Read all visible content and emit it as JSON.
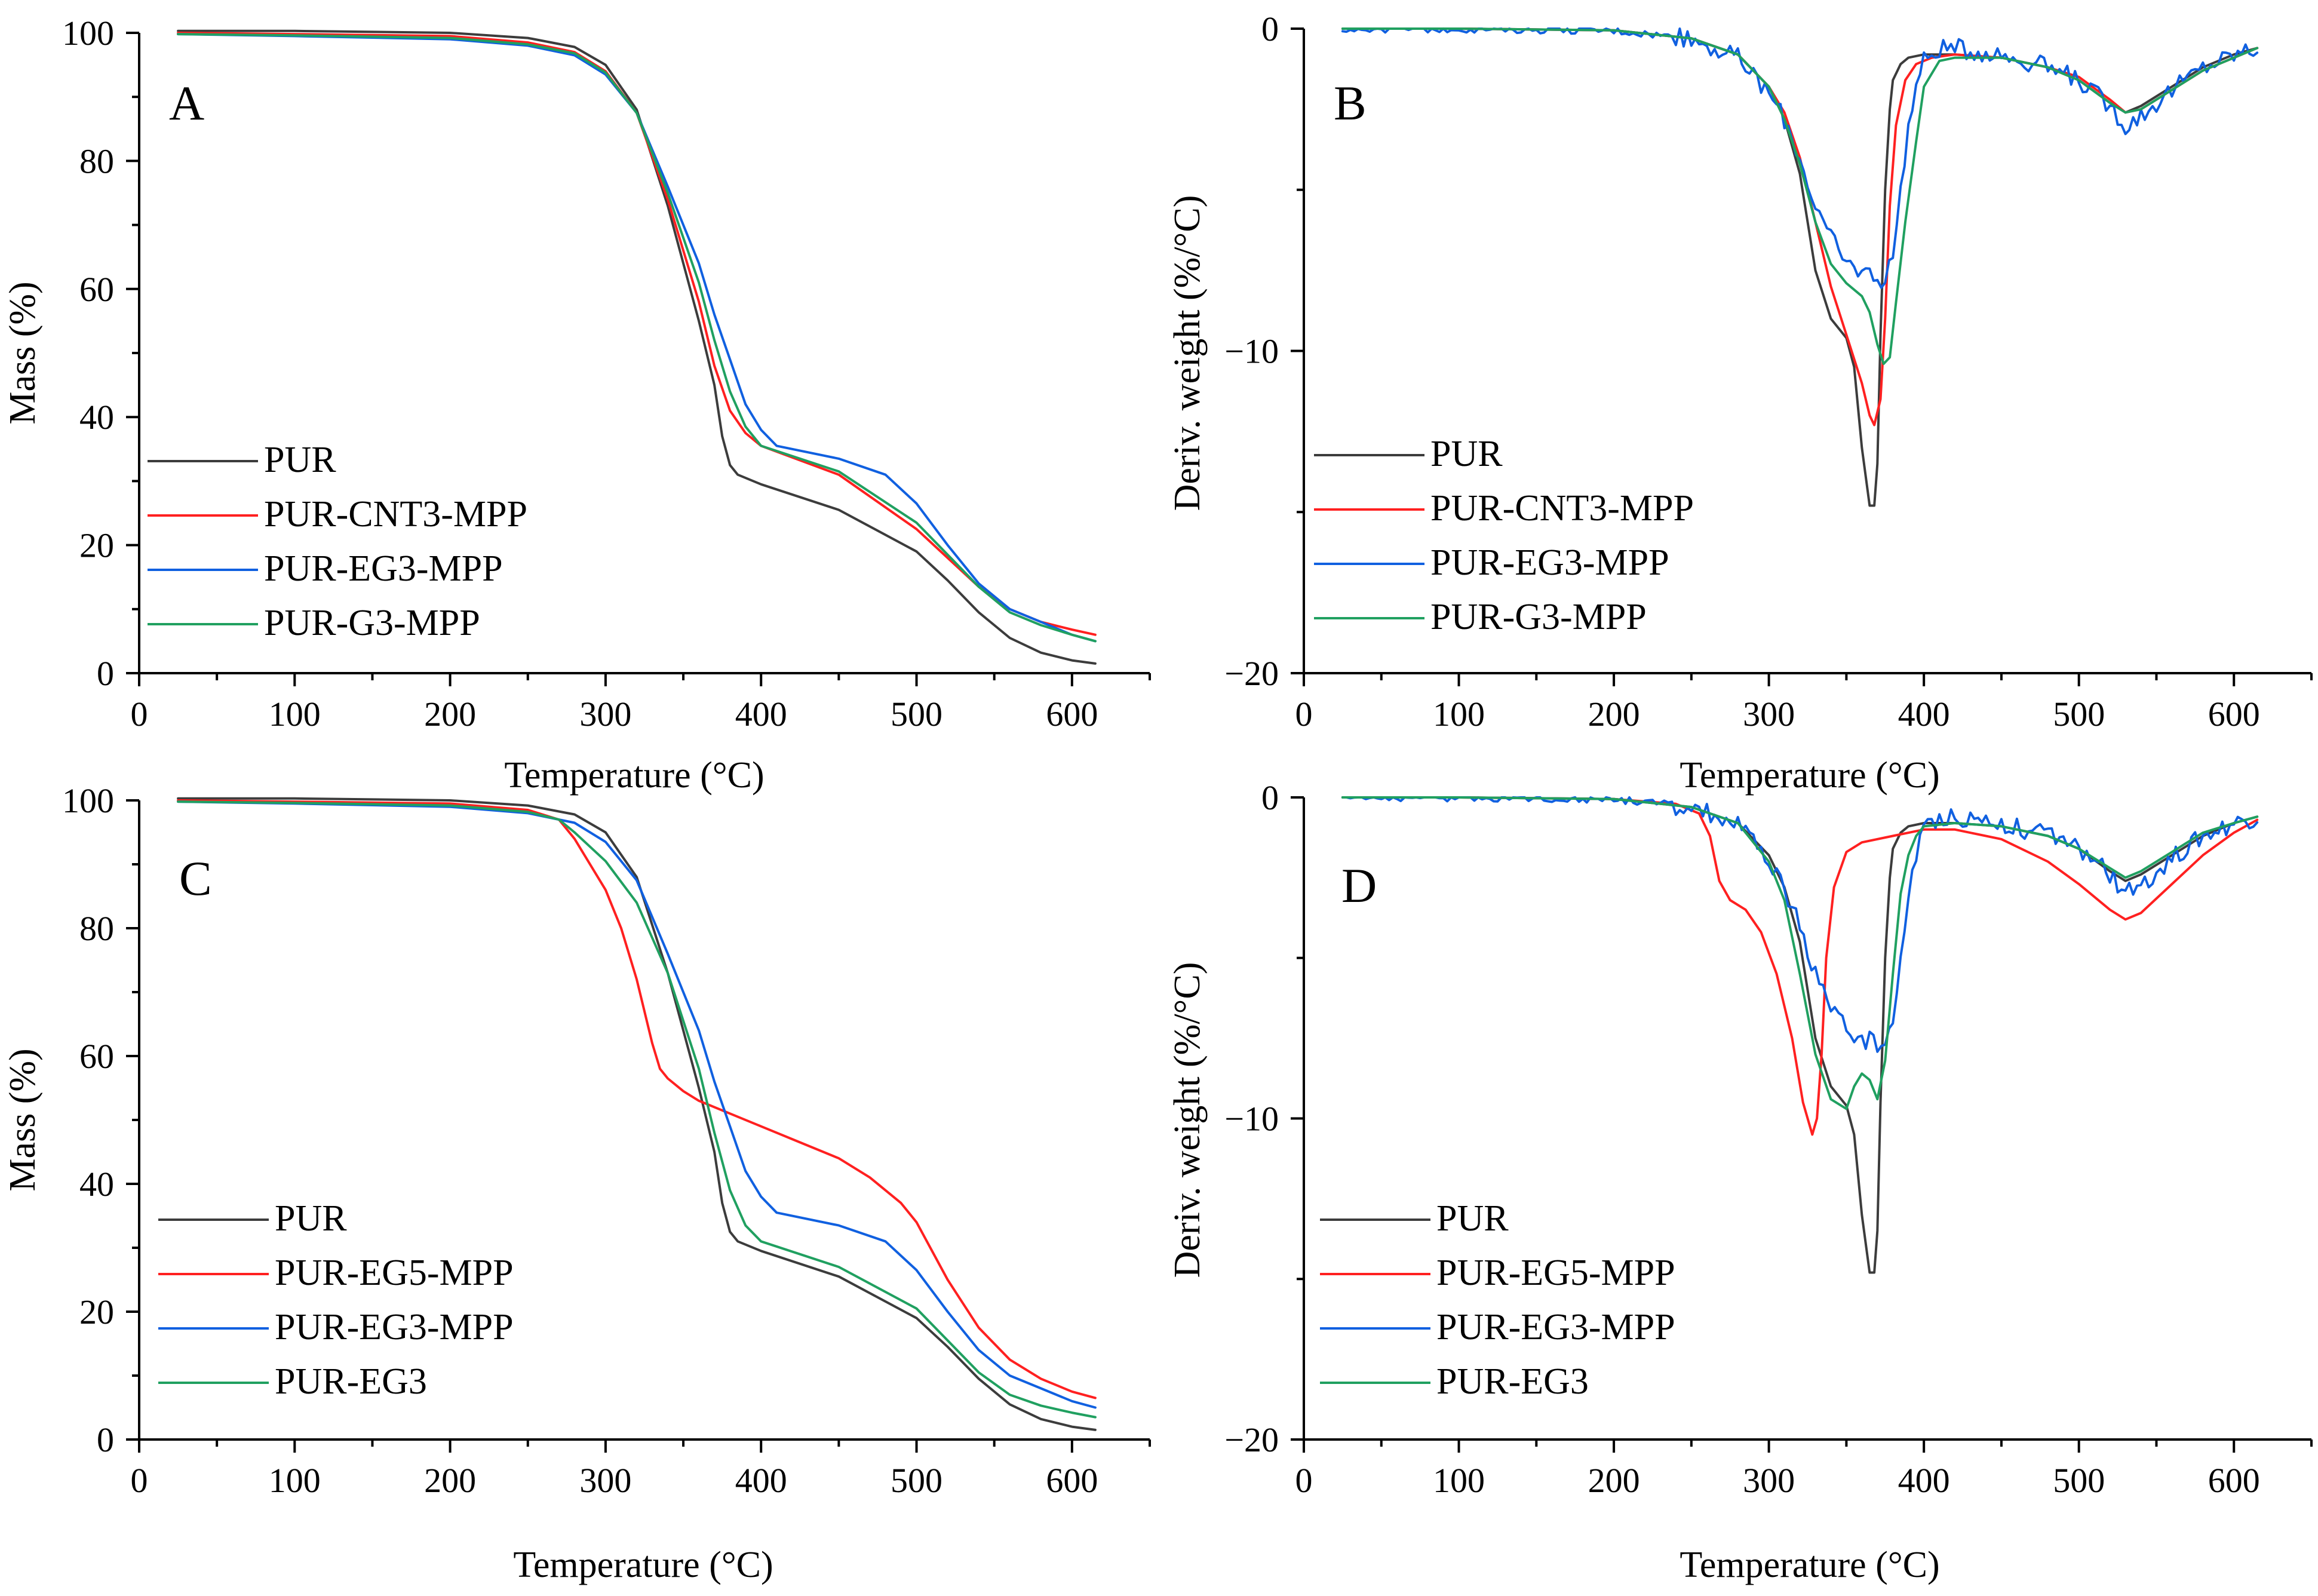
{
  "chart_data": [
    {
      "type": "line",
      "panel_label": "A",
      "xlabel": "Temperature (°C)",
      "ylabel": "Mass (%)",
      "xlim": [
        0,
        650
      ],
      "ylim": [
        0,
        100
      ],
      "xticks": [
        0,
        100,
        200,
        300,
        400,
        500,
        600
      ],
      "yticks": [
        0,
        20,
        40,
        60,
        80,
        100
      ],
      "legend_position": "bottom-left",
      "series": [
        {
          "name": "PUR",
          "color": "#3c3c3c",
          "x": [
            25,
            100,
            200,
            250,
            280,
            300,
            320,
            340,
            360,
            370,
            375,
            380,
            385,
            400,
            450,
            500,
            520,
            540,
            560,
            580,
            600,
            615
          ],
          "y": [
            100.3,
            100.3,
            100.0,
            99.2,
            97.8,
            95.0,
            88.0,
            73.0,
            55.0,
            45.0,
            37.0,
            32.5,
            31.0,
            29.5,
            25.5,
            19.0,
            14.5,
            9.5,
            5.5,
            3.2,
            2.0,
            1.5
          ]
        },
        {
          "name": "PUR-CNT3-MPP",
          "color": "#ff2020",
          "x": [
            25,
            100,
            200,
            250,
            280,
            300,
            320,
            340,
            360,
            370,
            380,
            390,
            400,
            450,
            500,
            520,
            540,
            560,
            580,
            600,
            615
          ],
          "y": [
            100.0,
            99.8,
            99.5,
            98.5,
            97.0,
            94.0,
            87.5,
            74.0,
            58.0,
            48.0,
            41.0,
            37.5,
            35.5,
            31.0,
            22.5,
            18.0,
            13.5,
            10.0,
            8.0,
            6.8,
            6.0
          ]
        },
        {
          "name": "PUR-EG3-MPP",
          "color": "#1060e0",
          "x": [
            25,
            100,
            200,
            250,
            280,
            300,
            320,
            340,
            360,
            370,
            380,
            390,
            400,
            410,
            450,
            480,
            500,
            520,
            540,
            560,
            580,
            600,
            615
          ],
          "y": [
            99.8,
            99.5,
            99.0,
            98.0,
            96.5,
            93.5,
            87.5,
            76.0,
            64.0,
            56.0,
            49.0,
            42.0,
            38.0,
            35.5,
            33.5,
            31.0,
            26.5,
            20.0,
            14.0,
            10.0,
            8.0,
            6.0,
            5.0
          ]
        },
        {
          "name": "PUR-G3-MPP",
          "color": "#20a060",
          "x": [
            25,
            100,
            200,
            250,
            280,
            300,
            320,
            340,
            360,
            370,
            380,
            390,
            400,
            450,
            500,
            520,
            540,
            560,
            580,
            600,
            615
          ],
          "y": [
            99.8,
            99.6,
            99.2,
            98.2,
            96.8,
            93.8,
            87.5,
            75.0,
            61.0,
            52.0,
            44.0,
            38.5,
            35.5,
            31.5,
            23.5,
            18.5,
            13.5,
            9.5,
            7.5,
            6.0,
            5.0
          ]
        }
      ]
    },
    {
      "type": "line",
      "panel_label": "B",
      "xlabel": "Temperature (°C)",
      "ylabel": "Deriv. weight (%/°C)",
      "xlim": [
        0,
        650
      ],
      "ylim": [
        -20,
        0
      ],
      "xticks": [
        0,
        100,
        200,
        300,
        400,
        500,
        600
      ],
      "yticks": [
        -20,
        -10,
        0
      ],
      "legend_position": "bottom-left",
      "series": [
        {
          "name": "PUR",
          "color": "#3c3c3c",
          "x": [
            25,
            100,
            200,
            250,
            280,
            300,
            310,
            320,
            330,
            340,
            350,
            355,
            360,
            365,
            368,
            370,
            372,
            375,
            378,
            380,
            385,
            390,
            400,
            420,
            450,
            480,
            500,
            520,
            530,
            540,
            560,
            580,
            600,
            615
          ],
          "y": [
            0,
            0,
            -0.05,
            -0.3,
            -0.8,
            -1.8,
            -2.8,
            -4.5,
            -7.5,
            -9.0,
            -9.6,
            -10.5,
            -13.0,
            -14.8,
            -14.8,
            -13.5,
            -9.5,
            -5.0,
            -2.5,
            -1.6,
            -1.1,
            -0.9,
            -0.8,
            -0.8,
            -0.9,
            -1.2,
            -1.6,
            -2.3,
            -2.6,
            -2.4,
            -1.8,
            -1.2,
            -0.8,
            -0.6
          ]
        },
        {
          "name": "PUR-CNT3-MPP",
          "color": "#ff2020",
          "x": [
            25,
            100,
            200,
            250,
            280,
            300,
            310,
            320,
            330,
            340,
            350,
            360,
            365,
            368,
            372,
            375,
            378,
            382,
            388,
            395,
            405,
            420,
            450,
            480,
            500,
            520,
            530,
            540,
            560,
            580,
            600,
            615
          ],
          "y": [
            0,
            0,
            -0.05,
            -0.3,
            -0.8,
            -1.8,
            -2.6,
            -4.0,
            -6.0,
            -8.0,
            -9.5,
            -11.0,
            -12.0,
            -12.3,
            -11.5,
            -9.0,
            -5.5,
            -3.0,
            -1.6,
            -1.1,
            -0.9,
            -0.8,
            -0.9,
            -1.2,
            -1.5,
            -2.2,
            -2.6,
            -2.5,
            -1.9,
            -1.3,
            -0.9,
            -0.6
          ]
        },
        {
          "name": "PUR-EG3-MPP",
          "color": "#1060e0",
          "noise": 0.2,
          "x": [
            25,
            100,
            200,
            250,
            280,
            300,
            310,
            320,
            330,
            335,
            340,
            350,
            360,
            370,
            375,
            380,
            385,
            390,
            395,
            400,
            410,
            420,
            450,
            480,
            500,
            520,
            530,
            540,
            560,
            580,
            600,
            615
          ],
          "y": [
            0,
            0,
            -0.05,
            -0.3,
            -0.9,
            -2.0,
            -2.8,
            -4.0,
            -5.5,
            -6.0,
            -6.5,
            -7.3,
            -7.5,
            -7.7,
            -7.8,
            -7.0,
            -5.0,
            -3.0,
            -1.8,
            -1.0,
            -0.6,
            -0.6,
            -0.8,
            -1.2,
            -1.6,
            -2.4,
            -3.0,
            -2.7,
            -1.9,
            -1.2,
            -0.8,
            -0.6
          ]
        },
        {
          "name": "PUR-G3-MPP",
          "color": "#20a060",
          "x": [
            25,
            100,
            200,
            250,
            280,
            300,
            310,
            320,
            330,
            340,
            350,
            360,
            365,
            370,
            374,
            378,
            382,
            388,
            395,
            400,
            410,
            420,
            450,
            480,
            500,
            520,
            530,
            540,
            560,
            580,
            600,
            615
          ],
          "y": [
            0,
            0,
            -0.05,
            -0.3,
            -0.8,
            -1.8,
            -2.8,
            -4.2,
            -6.0,
            -7.3,
            -7.9,
            -8.3,
            -8.8,
            -9.8,
            -10.4,
            -10.2,
            -8.5,
            -6.0,
            -3.5,
            -1.8,
            -1.0,
            -0.9,
            -0.9,
            -1.2,
            -1.6,
            -2.3,
            -2.6,
            -2.5,
            -1.9,
            -1.3,
            -0.9,
            -0.6
          ]
        }
      ]
    },
    {
      "type": "line",
      "panel_label": "C",
      "xlabel": "Temperature (°C)",
      "ylabel": "Mass (%)",
      "xlim": [
        0,
        650
      ],
      "ylim": [
        0,
        100
      ],
      "xticks": [
        0,
        100,
        200,
        300,
        400,
        500,
        600
      ],
      "yticks": [
        0,
        20,
        40,
        60,
        80,
        100
      ],
      "legend_position": "bottom-left",
      "series": [
        {
          "name": "PUR",
          "color": "#3c3c3c",
          "x": [
            25,
            100,
            200,
            250,
            280,
            300,
            320,
            340,
            360,
            370,
            375,
            380,
            385,
            400,
            450,
            500,
            520,
            540,
            560,
            580,
            600,
            615
          ],
          "y": [
            100.3,
            100.3,
            100.0,
            99.2,
            97.8,
            95.0,
            88.0,
            73.0,
            55.0,
            45.0,
            37.0,
            32.5,
            31.0,
            29.5,
            25.5,
            19.0,
            14.5,
            9.5,
            5.5,
            3.2,
            2.0,
            1.5
          ]
        },
        {
          "name": "PUR-EG5-MPP",
          "color": "#ff2020",
          "x": [
            25,
            100,
            200,
            250,
            270,
            280,
            290,
            300,
            310,
            320,
            330,
            335,
            340,
            350,
            360,
            380,
            400,
            420,
            450,
            470,
            490,
            500,
            520,
            540,
            560,
            580,
            600,
            615
          ],
          "y": [
            100.0,
            99.8,
            99.5,
            98.5,
            97.0,
            94.0,
            90.0,
            86.0,
            80.0,
            72.0,
            62.0,
            58.0,
            56.5,
            54.5,
            53.0,
            51.0,
            49.0,
            47.0,
            44.0,
            41.0,
            37.0,
            34.0,
            25.0,
            17.5,
            12.5,
            9.5,
            7.5,
            6.5
          ]
        },
        {
          "name": "PUR-EG3-MPP",
          "color": "#1060e0",
          "x": [
            25,
            100,
            200,
            250,
            280,
            300,
            320,
            340,
            360,
            370,
            380,
            390,
            400,
            410,
            450,
            480,
            500,
            520,
            540,
            560,
            580,
            600,
            615
          ],
          "y": [
            99.8,
            99.5,
            99.0,
            98.0,
            96.5,
            93.5,
            87.5,
            76.0,
            64.0,
            56.0,
            49.0,
            42.0,
            38.0,
            35.5,
            33.5,
            31.0,
            26.5,
            20.0,
            14.0,
            10.0,
            8.0,
            6.0,
            5.0
          ]
        },
        {
          "name": "PUR-EG3",
          "color": "#20a060",
          "x": [
            25,
            100,
            200,
            250,
            270,
            280,
            300,
            320,
            340,
            360,
            370,
            380,
            390,
            400,
            450,
            500,
            520,
            540,
            560,
            580,
            600,
            615
          ],
          "y": [
            99.8,
            99.6,
            99.2,
            98.2,
            97.0,
            95.0,
            90.5,
            84.0,
            73.0,
            58.0,
            48.0,
            39.0,
            33.5,
            31.0,
            27.0,
            20.5,
            15.5,
            10.5,
            7.0,
            5.3,
            4.2,
            3.5
          ]
        }
      ]
    },
    {
      "type": "line",
      "panel_label": "D",
      "xlabel": "Temperature (°C)",
      "ylabel": "Deriv. weight (%/°C)",
      "xlim": [
        0,
        650
      ],
      "ylim": [
        -20,
        0
      ],
      "xticks": [
        0,
        100,
        200,
        300,
        400,
        500,
        600
      ],
      "yticks": [
        -20,
        -10,
        0
      ],
      "legend_position": "bottom-left",
      "series": [
        {
          "name": "PUR",
          "color": "#3c3c3c",
          "x": [
            25,
            100,
            200,
            250,
            280,
            300,
            310,
            320,
            330,
            340,
            350,
            355,
            360,
            365,
            368,
            370,
            372,
            375,
            378,
            380,
            385,
            390,
            400,
            420,
            450,
            480,
            500,
            520,
            530,
            540,
            560,
            580,
            600,
            615
          ],
          "y": [
            0,
            0,
            -0.05,
            -0.3,
            -0.8,
            -1.8,
            -2.8,
            -4.5,
            -7.5,
            -9.0,
            -9.6,
            -10.5,
            -13.0,
            -14.8,
            -14.8,
            -13.5,
            -9.5,
            -5.0,
            -2.5,
            -1.6,
            -1.1,
            -0.9,
            -0.8,
            -0.8,
            -0.9,
            -1.2,
            -1.6,
            -2.3,
            -2.6,
            -2.4,
            -1.8,
            -1.2,
            -0.8,
            -0.6
          ]
        },
        {
          "name": "PUR-EG5-MPP",
          "color": "#ff2020",
          "x": [
            25,
            100,
            200,
            240,
            255,
            262,
            268,
            275,
            285,
            295,
            305,
            315,
            322,
            328,
            331,
            334,
            337,
            342,
            350,
            360,
            380,
            400,
            420,
            450,
            480,
            500,
            520,
            530,
            540,
            560,
            580,
            600,
            615
          ],
          "y": [
            0,
            0,
            -0.05,
            -0.2,
            -0.5,
            -1.2,
            -2.6,
            -3.2,
            -3.5,
            -4.2,
            -5.5,
            -7.5,
            -9.5,
            -10.5,
            -10.0,
            -8.0,
            -5.0,
            -2.8,
            -1.7,
            -1.4,
            -1.2,
            -1.0,
            -1.0,
            -1.3,
            -2.0,
            -2.7,
            -3.5,
            -3.8,
            -3.6,
            -2.7,
            -1.8,
            -1.1,
            -0.7
          ]
        },
        {
          "name": "PUR-EG3-MPP",
          "color": "#1060e0",
          "noise": 0.2,
          "x": [
            25,
            100,
            200,
            250,
            280,
            300,
            310,
            320,
            330,
            335,
            340,
            350,
            360,
            370,
            375,
            380,
            385,
            390,
            395,
            400,
            410,
            420,
            450,
            480,
            500,
            520,
            530,
            540,
            560,
            580,
            600,
            615
          ],
          "y": [
            0,
            0,
            -0.05,
            -0.3,
            -0.9,
            -2.0,
            -2.8,
            -4.0,
            -5.5,
            -6.0,
            -6.5,
            -7.3,
            -7.5,
            -7.7,
            -7.8,
            -7.0,
            -5.0,
            -3.0,
            -1.8,
            -1.0,
            -0.6,
            -0.6,
            -0.8,
            -1.2,
            -1.6,
            -2.4,
            -3.0,
            -2.7,
            -1.9,
            -1.2,
            -0.8,
            -0.6
          ]
        },
        {
          "name": "PUR-EG3",
          "color": "#20a060",
          "x": [
            25,
            100,
            200,
            250,
            280,
            300,
            310,
            320,
            330,
            340,
            350,
            355,
            360,
            365,
            370,
            375,
            380,
            385,
            390,
            395,
            400,
            420,
            450,
            480,
            500,
            520,
            530,
            540,
            560,
            580,
            600,
            615
          ],
          "y": [
            0,
            0,
            -0.05,
            -0.3,
            -0.8,
            -2.0,
            -3.2,
            -5.5,
            -8.0,
            -9.4,
            -9.7,
            -9.0,
            -8.6,
            -8.8,
            -9.4,
            -8.2,
            -5.5,
            -3.0,
            -1.8,
            -1.2,
            -0.9,
            -0.8,
            -0.9,
            -1.2,
            -1.6,
            -2.2,
            -2.5,
            -2.3,
            -1.7,
            -1.1,
            -0.8,
            -0.6
          ]
        }
      ]
    }
  ]
}
